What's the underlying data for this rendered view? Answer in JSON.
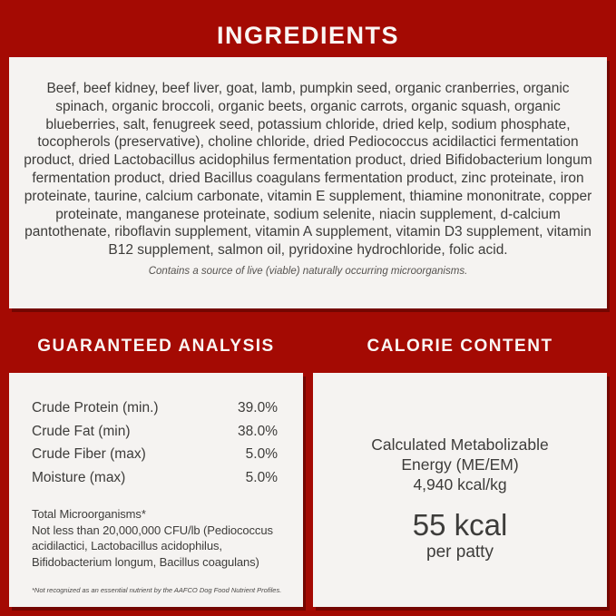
{
  "colors": {
    "background_red": "#A40A03",
    "panel_background": "#F5F3F1",
    "heading_text": "#FAF6F4",
    "body_text": "#3D3C3A"
  },
  "ingredients": {
    "title": "INGREDIENTS",
    "body": "Beef, beef kidney, beef liver, goat, lamb, pumpkin seed, organic cranberries, organic spinach, organic broccoli, organic beets, organic carrots, organic squash, organic blueberries, salt, fenugreek seed, potassium chloride, dried kelp, sodium phosphate, tocopherols (preservative), choline chloride, dried Pediococcus acidilactici fermentation product, dried Lactobacillus acidophilus fermentation product, dried Bifidobacterium longum fermentation product, dried Bacillus coagulans fermentation product, zinc proteinate, iron proteinate, taurine, calcium carbonate, vitamin E supplement, thiamine mononitrate, copper proteinate, manganese proteinate, sodium selenite, niacin supplement, d-calcium pantothenate, riboflavin supplement, vitamin A supplement, vitamin D3 supplement, vitamin B12 supplement, salmon oil, pyridoxine hydrochloride, folic acid.",
    "note": "Contains a source of live (viable) naturally occurring microorganisms."
  },
  "guaranteed_analysis": {
    "title": "GUARANTEED ANALYSIS",
    "rows": [
      {
        "label": "Crude Protein (min.)",
        "value": "39.0%"
      },
      {
        "label": "Crude Fat (min)",
        "value": "38.0%"
      },
      {
        "label": "Crude Fiber (max)",
        "value": "5.0%"
      },
      {
        "label": "Moisture (max)",
        "value": "5.0%"
      }
    ],
    "microorganisms_title": "Total Microorganisms*",
    "microorganisms_detail": "Not less than 20,000,000 CFU/lb (Pediococcus acidilactici, Lactobacillus acidophilus, Bifidobacterium longum, Bacillus coagulans)",
    "footnote": "*Not recognized as an essential nutrient by the AAFCO Dog Food Nutrient Profiles."
  },
  "calorie_content": {
    "title": "CALORIE CONTENT",
    "energy_title_line1": "Calculated Metabolizable",
    "energy_title_line2": "Energy (ME/EM)",
    "energy_value": "4,940 kcal/kg",
    "kcal_value": "55 kcal",
    "kcal_unit": "per patty"
  }
}
